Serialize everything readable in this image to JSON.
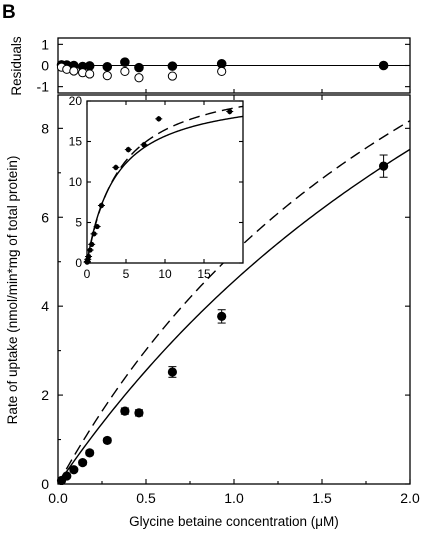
{
  "panel_label": "B",
  "chart_data": [
    {
      "id": "main",
      "type": "scatter",
      "xlabel": "Glycine betaine concentration (μM)",
      "ylabel": "Rate of uptake (nmol/min*mg of total protein)",
      "xlim": [
        0,
        2.0
      ],
      "ylim": [
        0,
        8.75
      ],
      "xticks": [
        0.0,
        0.5,
        1.0,
        1.5,
        2.0
      ],
      "xtick_labels": [
        "0.0",
        "0.5",
        "1.0",
        "1.5",
        "2.0"
      ],
      "yticks": [
        0,
        2,
        4,
        6,
        8
      ],
      "ytick_labels": [
        "0",
        "2",
        "4",
        "6",
        "8"
      ],
      "grid": false,
      "points": [
        {
          "x": 0.02,
          "y": 0.08,
          "err": 0.02
        },
        {
          "x": 0.05,
          "y": 0.18,
          "err": 0.03
        },
        {
          "x": 0.09,
          "y": 0.32,
          "err": 0.04
        },
        {
          "x": 0.14,
          "y": 0.48,
          "err": 0.05
        },
        {
          "x": 0.18,
          "y": 0.7,
          "err": 0.05
        },
        {
          "x": 0.28,
          "y": 0.98,
          "err": 0.05
        },
        {
          "x": 0.38,
          "y": 1.64,
          "err": 0.07
        },
        {
          "x": 0.46,
          "y": 1.6,
          "err": 0.07
        },
        {
          "x": 0.65,
          "y": 2.52,
          "err": 0.12
        },
        {
          "x": 0.93,
          "y": 3.77,
          "err": 0.15
        },
        {
          "x": 1.85,
          "y": 7.15,
          "err": 0.25
        }
      ],
      "solid_fit": {
        "Vmax": 21.45,
        "Km": 3.7
      },
      "dashed_fit": {
        "Vmax": 19.0,
        "Km": 2.65
      }
    },
    {
      "id": "residuals",
      "type": "scatter",
      "ylabel": "Residuals",
      "xlim": [
        0,
        2.0
      ],
      "ylim": [
        -1.3,
        1.3
      ],
      "yticks": [
        1,
        0,
        -1
      ],
      "ytick_labels": [
        "1",
        "0",
        "-1"
      ],
      "series": [
        {
          "fill": "filled",
          "values": [
            {
              "x": 0.02,
              "y": 0.03
            },
            {
              "x": 0.05,
              "y": 0.02
            },
            {
              "x": 0.09,
              "y": 0.0
            },
            {
              "x": 0.14,
              "y": -0.05
            },
            {
              "x": 0.18,
              "y": -0.02
            },
            {
              "x": 0.28,
              "y": -0.06
            },
            {
              "x": 0.38,
              "y": 0.16
            },
            {
              "x": 0.46,
              "y": -0.1
            },
            {
              "x": 0.65,
              "y": -0.03
            },
            {
              "x": 0.93,
              "y": 0.08
            },
            {
              "x": 1.85,
              "y": 0.0
            }
          ]
        },
        {
          "fill": "open",
          "values": [
            {
              "x": 0.02,
              "y": -0.08
            },
            {
              "x": 0.05,
              "y": -0.18
            },
            {
              "x": 0.09,
              "y": -0.26
            },
            {
              "x": 0.14,
              "y": -0.34
            },
            {
              "x": 0.18,
              "y": -0.4
            },
            {
              "x": 0.28,
              "y": -0.48
            },
            {
              "x": 0.38,
              "y": -0.28
            },
            {
              "x": 0.46,
              "y": -0.58
            },
            {
              "x": 0.65,
              "y": -0.5
            },
            {
              "x": 0.93,
              "y": -0.28
            }
          ]
        }
      ]
    },
    {
      "id": "inset",
      "type": "scatter",
      "xlim": [
        0,
        20
      ],
      "ylim": [
        0,
        20
      ],
      "xticks": [
        0,
        5,
        10,
        15
      ],
      "xtick_labels": [
        "0",
        "5",
        "10",
        "15"
      ],
      "yticks": [
        0,
        5,
        10,
        15,
        20
      ],
      "ytick_labels": [
        "0",
        "5",
        "10",
        "15",
        "20"
      ],
      "points": [
        {
          "x": 0.02,
          "y": 0.1,
          "err": 0.2
        },
        {
          "x": 0.05,
          "y": 0.2,
          "err": 0.2
        },
        {
          "x": 0.1,
          "y": 0.45,
          "err": 0.2
        },
        {
          "x": 0.2,
          "y": 0.8,
          "err": 0.2
        },
        {
          "x": 0.4,
          "y": 1.6,
          "err": 0.2
        },
        {
          "x": 0.6,
          "y": 2.3,
          "err": 0.25
        },
        {
          "x": 0.9,
          "y": 3.6,
          "err": 0.25
        },
        {
          "x": 1.3,
          "y": 4.5,
          "err": 0.3
        },
        {
          "x": 1.85,
          "y": 7.1,
          "err": 0.35
        },
        {
          "x": 3.7,
          "y": 11.8,
          "err": 0.35
        },
        {
          "x": 5.3,
          "y": 14.0,
          "err": 0.35
        },
        {
          "x": 7.3,
          "y": 14.6,
          "err": 0.35
        },
        {
          "x": 9.2,
          "y": 17.8,
          "err": 0.35
        },
        {
          "x": 18.3,
          "y": 18.7,
          "err": 0.35
        }
      ],
      "solid_fit": {
        "Vmax": 21.45,
        "Km": 3.7
      },
      "dashed_fit": {
        "Vmax": 23.5,
        "Km": 4.3
      }
    }
  ]
}
